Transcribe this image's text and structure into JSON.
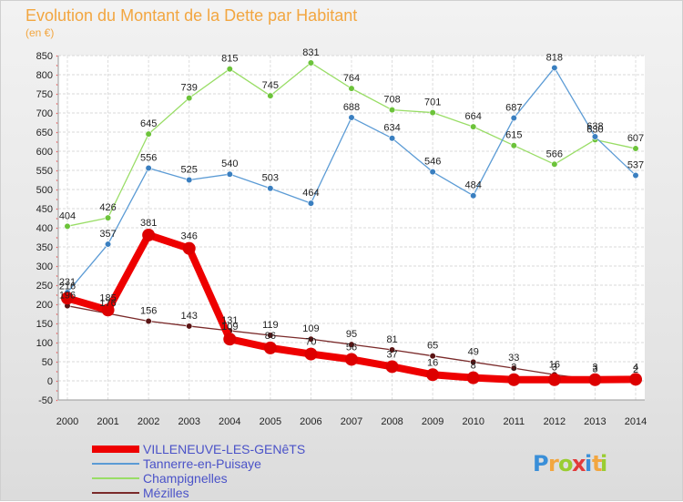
{
  "chart_data": {
    "type": "line",
    "title": "Evolution du Montant de la Dette par Habitant",
    "subtitle": "(en €)",
    "categories": [
      "2000",
      "2001",
      "2002",
      "2003",
      "2004",
      "2005",
      "2006",
      "2007",
      "2008",
      "2009",
      "2010",
      "2011",
      "2012",
      "2013",
      "2014"
    ],
    "ylim": [
      -50,
      850
    ],
    "yticks": [
      -50,
      0,
      50,
      100,
      150,
      200,
      250,
      300,
      350,
      400,
      450,
      500,
      550,
      600,
      650,
      700,
      750,
      800,
      850
    ],
    "grid": true,
    "legend_position": "bottom-left",
    "series": [
      {
        "name": "VILLENEUVE-LES-GENêTS",
        "color": "#ee0000",
        "marker": "#dd0000",
        "values": [
          216,
          185,
          381,
          346,
          109,
          86,
          70,
          56,
          37,
          16,
          8,
          3,
          3,
          3,
          4
        ]
      },
      {
        "name": "Tannerre-en-Puisaye",
        "color": "#5b9bd5",
        "marker": "#3a7fc0",
        "values": [
          231,
          357,
          556,
          525,
          540,
          503,
          464,
          688,
          634,
          546,
          484,
          687,
          818,
          638,
          537
        ]
      },
      {
        "name": "Champignelles",
        "color": "#99dd66",
        "marker": "#6cc33a",
        "values": [
          404,
          426,
          645,
          739,
          815,
          745,
          831,
          764,
          708,
          701,
          664,
          615,
          566,
          630,
          607
        ]
      },
      {
        "name": "Mézilles",
        "color": "#7a2a2a",
        "marker": "#5a1414",
        "values": [
          196,
          176,
          156,
          143,
          131,
          119,
          109,
          95,
          81,
          65,
          49,
          33,
          16,
          3,
          2
        ]
      }
    ],
    "data_labels": [
      [
        216,
        185,
        381,
        346,
        109,
        86,
        70,
        56,
        37,
        16,
        8,
        3,
        3,
        3,
        4
      ],
      [
        231,
        357,
        556,
        525,
        540,
        503,
        464,
        688,
        634,
        546,
        484,
        687,
        818,
        638,
        537
      ],
      [
        404,
        426,
        645,
        739,
        815,
        745,
        831,
        764,
        708,
        701,
        664,
        615,
        566,
        630,
        607
      ],
      [
        196,
        176,
        156,
        143,
        131,
        119,
        109,
        95,
        81,
        65,
        49,
        33,
        16,
        3,
        2
      ]
    ]
  },
  "brand": {
    "text": "Proxiti",
    "colors": [
      "#3a8fd8",
      "#f2a640",
      "#9acd32",
      "#e23b3b",
      "#3a8fd8",
      "#f2a640",
      "#9acd32"
    ]
  }
}
